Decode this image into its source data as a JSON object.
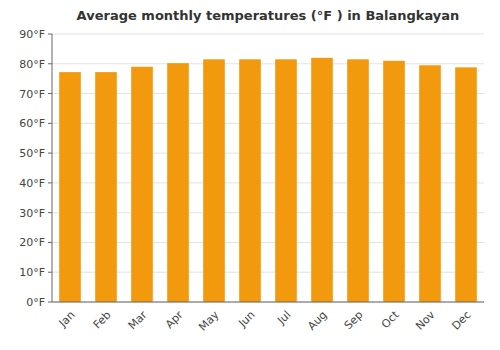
{
  "chart_data": {
    "type": "bar",
    "title": "Average monthly temperatures (°F ) in Balangkayan",
    "categories": [
      "Jan",
      "Feb",
      "Mar",
      "Apr",
      "May",
      "Jun",
      "Jul",
      "Aug",
      "Sep",
      "Oct",
      "Nov",
      "Dec"
    ],
    "values": [
      77.2,
      77.2,
      79.0,
      80.2,
      81.5,
      81.5,
      81.5,
      82.0,
      81.5,
      81.0,
      79.5,
      78.8
    ],
    "color": "#f2990d",
    "ylim": [
      0,
      90
    ],
    "yticks": [
      {
        "value": 0,
        "label": "0°F"
      },
      {
        "value": 10,
        "label": "10°F"
      },
      {
        "value": 20,
        "label": "20°F"
      },
      {
        "value": 30,
        "label": "30°F"
      },
      {
        "value": 40,
        "label": "40°F"
      },
      {
        "value": 50,
        "label": "50°F"
      },
      {
        "value": 60,
        "label": "60°F"
      },
      {
        "value": 70,
        "label": "70°F"
      },
      {
        "value": 80,
        "label": "80°F"
      },
      {
        "value": 90,
        "label": "90°F"
      }
    ],
    "grid": true
  }
}
